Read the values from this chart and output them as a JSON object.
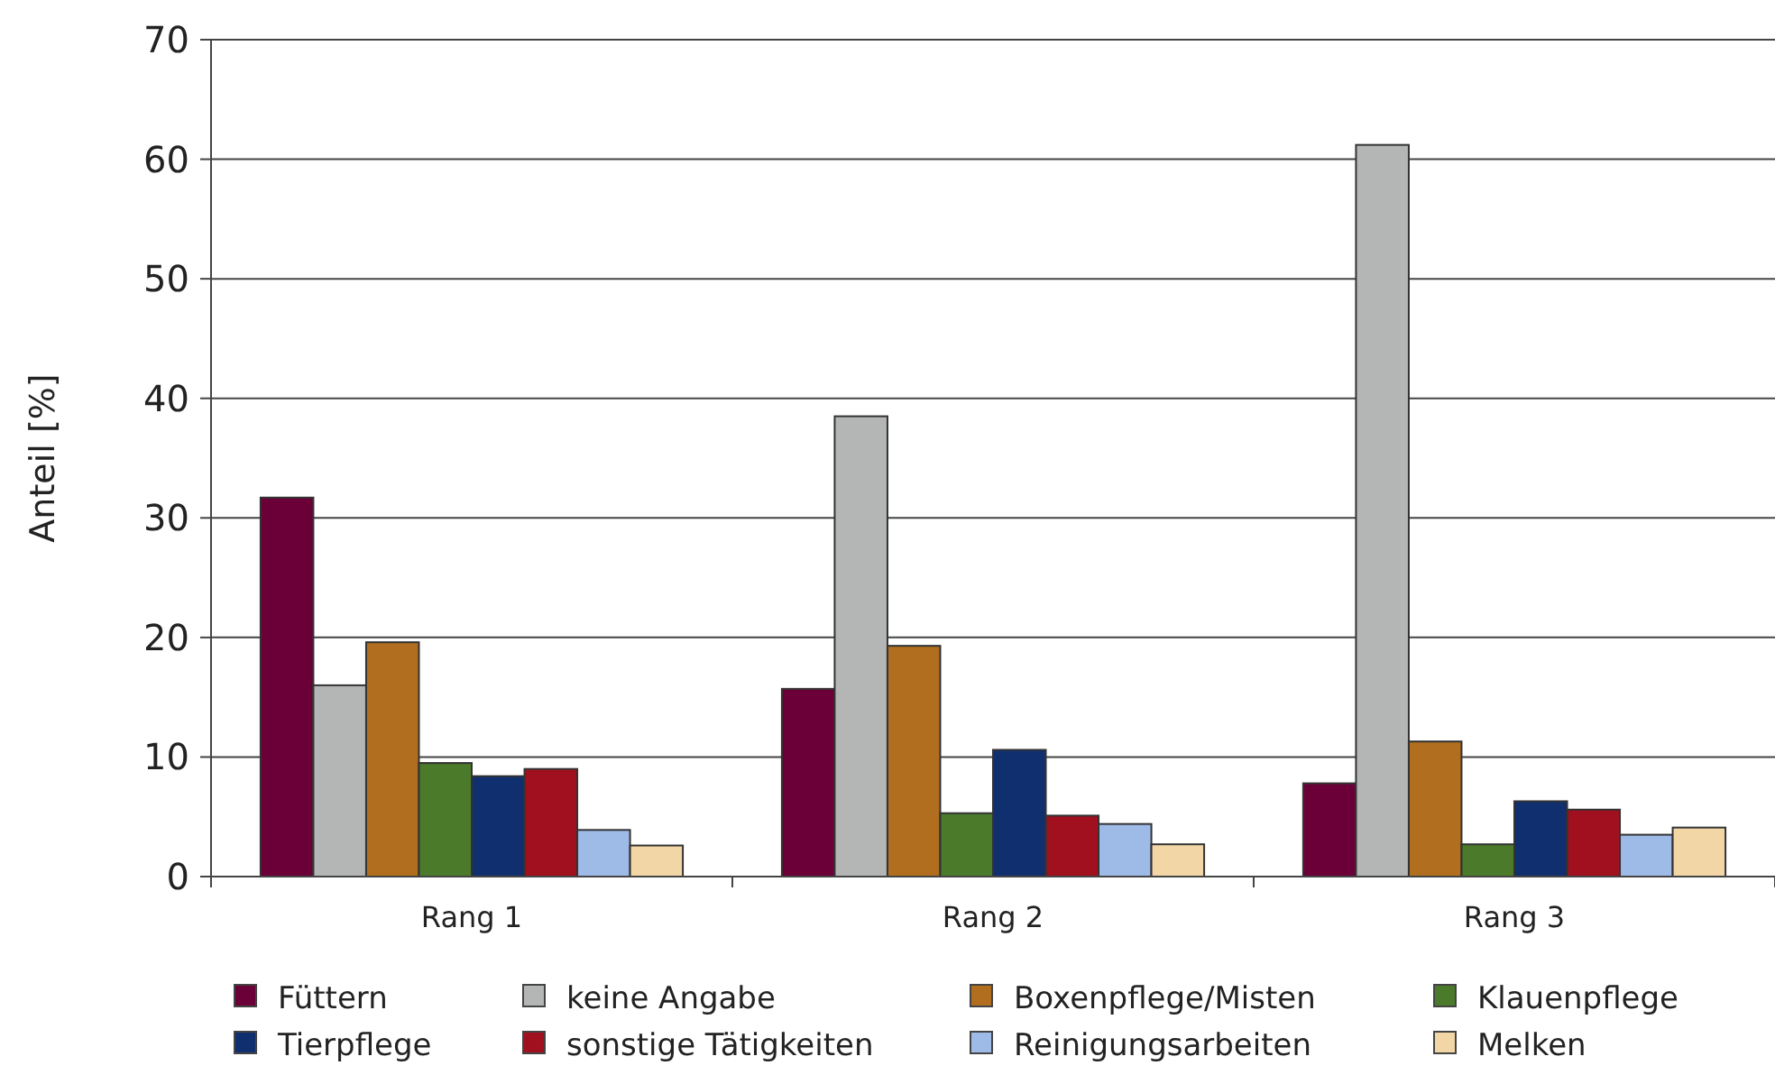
{
  "chart_data": {
    "type": "bar",
    "ylabel": "Anteil [%]",
    "categories": [
      "Rang 1",
      "Rang 2",
      "Rang 3"
    ],
    "series": [
      {
        "name": "Füttern",
        "color": "#6b0038",
        "values": [
          31.7,
          15.7,
          7.8
        ]
      },
      {
        "name": "keine Angabe",
        "color": "#b4b6b5",
        "values": [
          16,
          38.5,
          61.2
        ]
      },
      {
        "name": "Boxenpflege/Misten",
        "color": "#b06e1e",
        "values": [
          19.6,
          19.3,
          11.3
        ]
      },
      {
        "name": "Klauenpflege",
        "color": "#4a7a2a",
        "values": [
          9.5,
          5.3,
          2.7
        ]
      },
      {
        "name": "Tierpflege",
        "color": "#0f2f6e",
        "values": [
          8.4,
          10.6,
          6.3
        ]
      },
      {
        "name": "sonstige Tätigkeiten",
        "color": "#a0101e",
        "values": [
          9,
          5.1,
          5.6
        ]
      },
      {
        "name": "Reinigungsarbeiten",
        "color": "#9ebbe8",
        "values": [
          3.9,
          4.4,
          3.5
        ]
      },
      {
        "name": "Melken",
        "color": "#f3d6a6",
        "values": [
          2.6,
          2.7,
          4.1
        ]
      }
    ],
    "ylim": [
      0,
      70
    ],
    "yticks": [
      0,
      10,
      20,
      30,
      40,
      50,
      60,
      70
    ],
    "grid": "y",
    "legend": "bottom"
  }
}
